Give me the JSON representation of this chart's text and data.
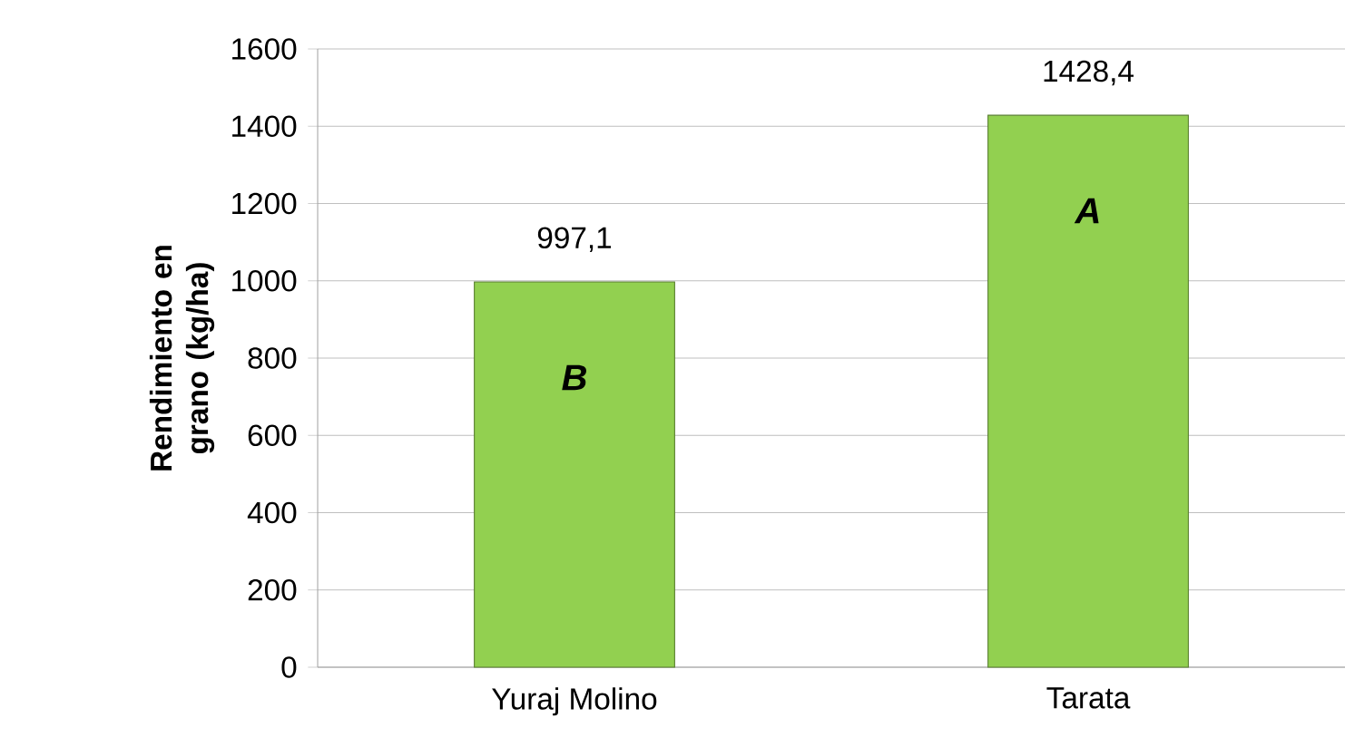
{
  "chart_data": {
    "type": "bar",
    "ylabel": "Rendimiento en grano (kg/ha)",
    "categories": [
      "Yuraj Molino",
      "Tarata"
    ],
    "values": [
      997.1,
      1428.4
    ],
    "color": "#92d050",
    "value_labels": [
      "997,1",
      "1428,4"
    ],
    "annotations": [
      "B",
      "A"
    ],
    "ylim": [
      0,
      1600
    ],
    "yticks": [
      0,
      200,
      400,
      600,
      800,
      1000,
      1200,
      1400,
      1600
    ],
    "grid": "y"
  }
}
